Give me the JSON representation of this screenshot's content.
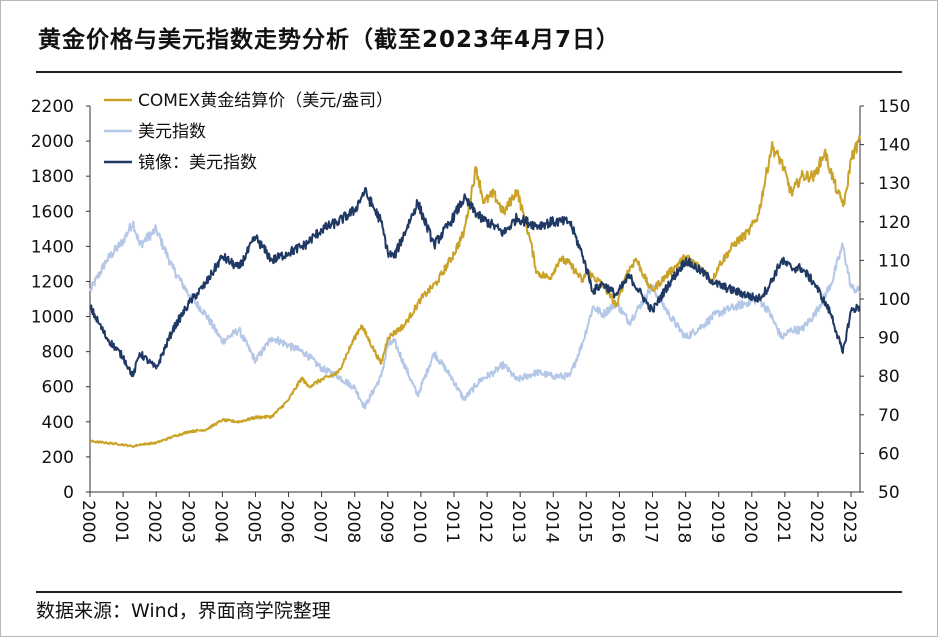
{
  "title": "黄金价格与美元指数走势分析（截至2023年4月7日）",
  "source": "数据来源：Wind，界面商学院整理",
  "chart_data": {
    "type": "line",
    "title": "黄金价格与美元指数走势分析（截至2023年4月7日）",
    "colors": {
      "gold": "#C9A227",
      "usd": "#B4C7E7",
      "mirror": "#1F3864"
    },
    "x_range": [
      2000.0,
      2023.27
    ],
    "x_ticks": [
      "2000",
      "2001",
      "2002",
      "2003",
      "2004",
      "2005",
      "2006",
      "2007",
      "2008",
      "2009",
      "2010",
      "2011",
      "2012",
      "2013",
      "2014",
      "2015",
      "2016",
      "2017",
      "2018",
      "2019",
      "2020",
      "2021",
      "2022",
      "2023"
    ],
    "y_left": {
      "range": [
        0,
        2200
      ],
      "ticks": [
        "0",
        "200",
        "400",
        "600",
        "800",
        "1000",
        "1200",
        "1400",
        "1600",
        "1800",
        "2000",
        "2200"
      ]
    },
    "y_right": {
      "range": [
        50,
        150
      ],
      "ticks": [
        "50",
        "60",
        "70",
        "80",
        "90",
        "100",
        "110",
        "120",
        "130",
        "140",
        "150"
      ]
    },
    "legend": {
      "position": "top-left"
    },
    "series": [
      {
        "name": "COMEX黄金结算价（美元/盎司）",
        "axis": "left",
        "key": "gold",
        "x": [
          2000.0,
          2000.5,
          2001.0,
          2001.3,
          2001.5,
          2002.0,
          2002.5,
          2003.0,
          2003.5,
          2004.0,
          2004.5,
          2005.0,
          2005.5,
          2006.0,
          2006.4,
          2006.6,
          2007.0,
          2007.5,
          2008.0,
          2008.2,
          2008.8,
          2009.0,
          2009.5,
          2010.0,
          2010.5,
          2011.0,
          2011.3,
          2011.67,
          2011.9,
          2012.2,
          2012.5,
          2012.9,
          2013.3,
          2013.5,
          2013.9,
          2014.2,
          2014.5,
          2014.9,
          2015.0,
          2015.5,
          2015.92,
          2016.2,
          2016.5,
          2016.9,
          2017.0,
          2017.5,
          2018.0,
          2018.5,
          2018.8,
          2019.0,
          2019.5,
          2019.9,
          2020.2,
          2020.6,
          2020.9,
          2021.2,
          2021.5,
          2021.9,
          2022.2,
          2022.6,
          2022.8,
          2023.0,
          2023.27
        ],
        "values": [
          290,
          280,
          270,
          260,
          270,
          280,
          315,
          345,
          355,
          410,
          400,
          425,
          430,
          525,
          650,
          600,
          640,
          680,
          880,
          950,
          730,
          880,
          950,
          1100,
          1200,
          1360,
          1480,
          1850,
          1650,
          1700,
          1590,
          1720,
          1440,
          1250,
          1220,
          1330,
          1300,
          1200,
          1260,
          1180,
          1060,
          1240,
          1330,
          1170,
          1150,
          1250,
          1340,
          1270,
          1200,
          1290,
          1420,
          1480,
          1580,
          1970,
          1880,
          1700,
          1800,
          1800,
          1940,
          1700,
          1640,
          1900,
          2010
        ]
      },
      {
        "name": "美元指数",
        "axis": "right",
        "key": "usd",
        "x": [
          2000.0,
          2000.5,
          2001.0,
          2001.3,
          2001.5,
          2002.0,
          2002.5,
          2003.0,
          2003.5,
          2004.0,
          2004.5,
          2005.0,
          2005.5,
          2006.0,
          2006.5,
          2007.0,
          2007.5,
          2008.0,
          2008.3,
          2008.8,
          2009.0,
          2009.2,
          2009.9,
          2010.4,
          2010.9,
          2011.3,
          2011.8,
          2012.2,
          2012.5,
          2012.9,
          2013.5,
          2014.0,
          2014.5,
          2014.9,
          2015.2,
          2015.5,
          2015.9,
          2016.3,
          2016.9,
          2017.0,
          2017.5,
          2018.0,
          2018.5,
          2018.9,
          2019.5,
          2020.2,
          2020.5,
          2020.9,
          2021.2,
          2021.5,
          2021.9,
          2022.4,
          2022.75,
          2023.0,
          2023.27
        ],
        "values": [
          102,
          110,
          115,
          120,
          114,
          118,
          108,
          101,
          96,
          89,
          92,
          84,
          90,
          88,
          86,
          82,
          80,
          77,
          72,
          80,
          88,
          89,
          75,
          86,
          80,
          74,
          79,
          81,
          83,
          79,
          81,
          80,
          80,
          89,
          98,
          96,
          99,
          94,
          102,
          103,
          96,
          90,
          93,
          96,
          98,
          100,
          97,
          90,
          92,
          92,
          96,
          104,
          114,
          103,
          102
        ]
      },
      {
        "name": "镜像：美元指数",
        "axis": "right",
        "key": "mirror",
        "x": [
          2000.0,
          2000.5,
          2001.0,
          2001.3,
          2001.5,
          2002.0,
          2002.5,
          2003.0,
          2003.5,
          2004.0,
          2004.5,
          2005.0,
          2005.5,
          2006.0,
          2006.5,
          2007.0,
          2007.5,
          2008.0,
          2008.3,
          2008.8,
          2009.0,
          2009.2,
          2009.9,
          2010.4,
          2010.9,
          2011.3,
          2011.8,
          2012.2,
          2012.5,
          2012.9,
          2013.5,
          2014.0,
          2014.5,
          2014.9,
          2015.2,
          2015.5,
          2015.9,
          2016.3,
          2016.9,
          2017.0,
          2017.5,
          2018.0,
          2018.5,
          2018.9,
          2019.5,
          2020.2,
          2020.5,
          2020.9,
          2021.2,
          2021.5,
          2021.9,
          2022.4,
          2022.75,
          2023.0,
          2023.27
        ],
        "values": [
          98,
          90,
          85,
          80,
          86,
          82,
          92,
          99,
          104,
          111,
          108,
          116,
          110,
          112,
          114,
          118,
          120,
          123,
          128,
          120,
          112,
          111,
          125,
          114,
          120,
          126,
          121,
          119,
          117,
          121,
          119,
          120,
          120,
          111,
          102,
          104,
          101,
          106,
          98,
          97,
          104,
          110,
          107,
          104,
          102,
          100,
          103,
          110,
          108,
          108,
          104,
          96,
          86,
          97,
          98
        ]
      }
    ]
  }
}
